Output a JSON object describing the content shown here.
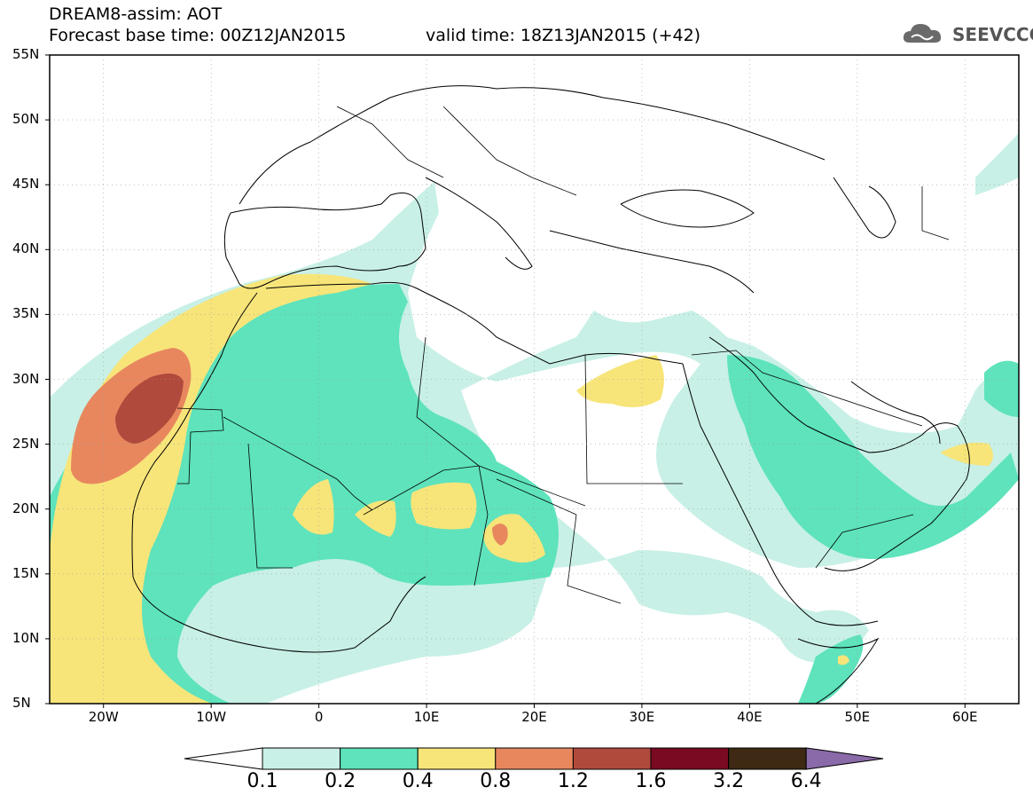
{
  "header": {
    "title_line1": "DREAM8-assim: AOT",
    "title_line2": "Forecast base time: 00Z12JAN2015",
    "valid_time": "valid time: 18Z13JAN2015 (+42)",
    "logo_text": "SEEVCCC"
  },
  "map": {
    "variable": "AOT",
    "lat_labels": [
      "55N",
      "50N",
      "45N",
      "40N",
      "35N",
      "30N",
      "25N",
      "20N",
      "15N",
      "10N",
      "5N"
    ],
    "lon_labels": [
      "20W",
      "10W",
      "0",
      "10E",
      "20E",
      "30E",
      "40E",
      "50E",
      "60E"
    ],
    "lon_range": [
      -25,
      65
    ],
    "lat_range": [
      5,
      55
    ]
  },
  "colorbar": {
    "levels": [
      "0.1",
      "0.2",
      "0.4",
      "0.8",
      "1.2",
      "1.6",
      "3.2",
      "6.4"
    ],
    "colors": [
      "#ffffff",
      "#c8f0e6",
      "#5ee3bc",
      "#f7e57a",
      "#e8875e",
      "#b04a3c",
      "#7a0a22",
      "#3e2a14",
      "#8a6aa8"
    ]
  }
}
